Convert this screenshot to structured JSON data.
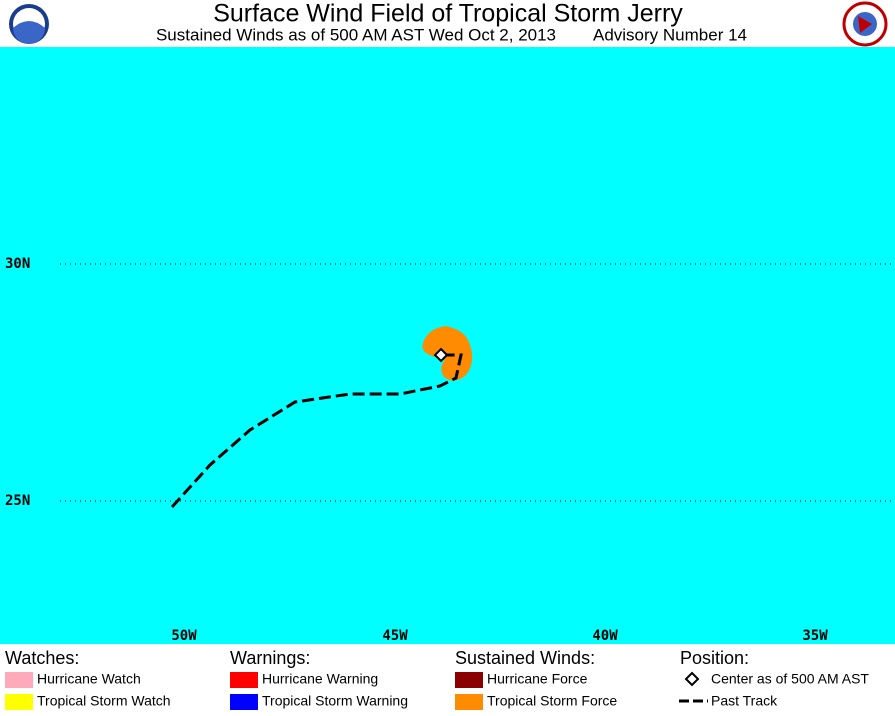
{
  "header": {
    "title": "Surface Wind Field of Tropical Storm Jerry",
    "subtitle": "Sustained Winds as of 500 AM AST Wed Oct 2, 2013",
    "advisory": "Advisory Number 14"
  },
  "map": {
    "lat_labels": [
      "30N",
      "25N"
    ],
    "lon_labels": [
      "50W",
      "45W",
      "40W",
      "35W"
    ]
  },
  "legend": [
    {
      "title": "Watches:",
      "items": [
        {
          "label": "Hurricane Watch",
          "color": "#ffaabb"
        },
        {
          "label": "Tropical Storm Watch",
          "color": "#ffff00"
        }
      ]
    },
    {
      "title": "Warnings:",
      "items": [
        {
          "label": "Hurricane Warning",
          "color": "#ff0000"
        },
        {
          "label": "Tropical Storm Warning",
          "color": "#0000ff"
        }
      ]
    },
    {
      "title": "Sustained Winds:",
      "items": [
        {
          "label": "Hurricane Force",
          "color": "#8b0000"
        },
        {
          "label": "Tropical Storm Force",
          "color": "#ff8c00"
        }
      ]
    },
    {
      "title": "Position:",
      "items": [
        {
          "label": "Center as of 500 AM AST"
        },
        {
          "label": "Past Track"
        }
      ]
    }
  ]
}
